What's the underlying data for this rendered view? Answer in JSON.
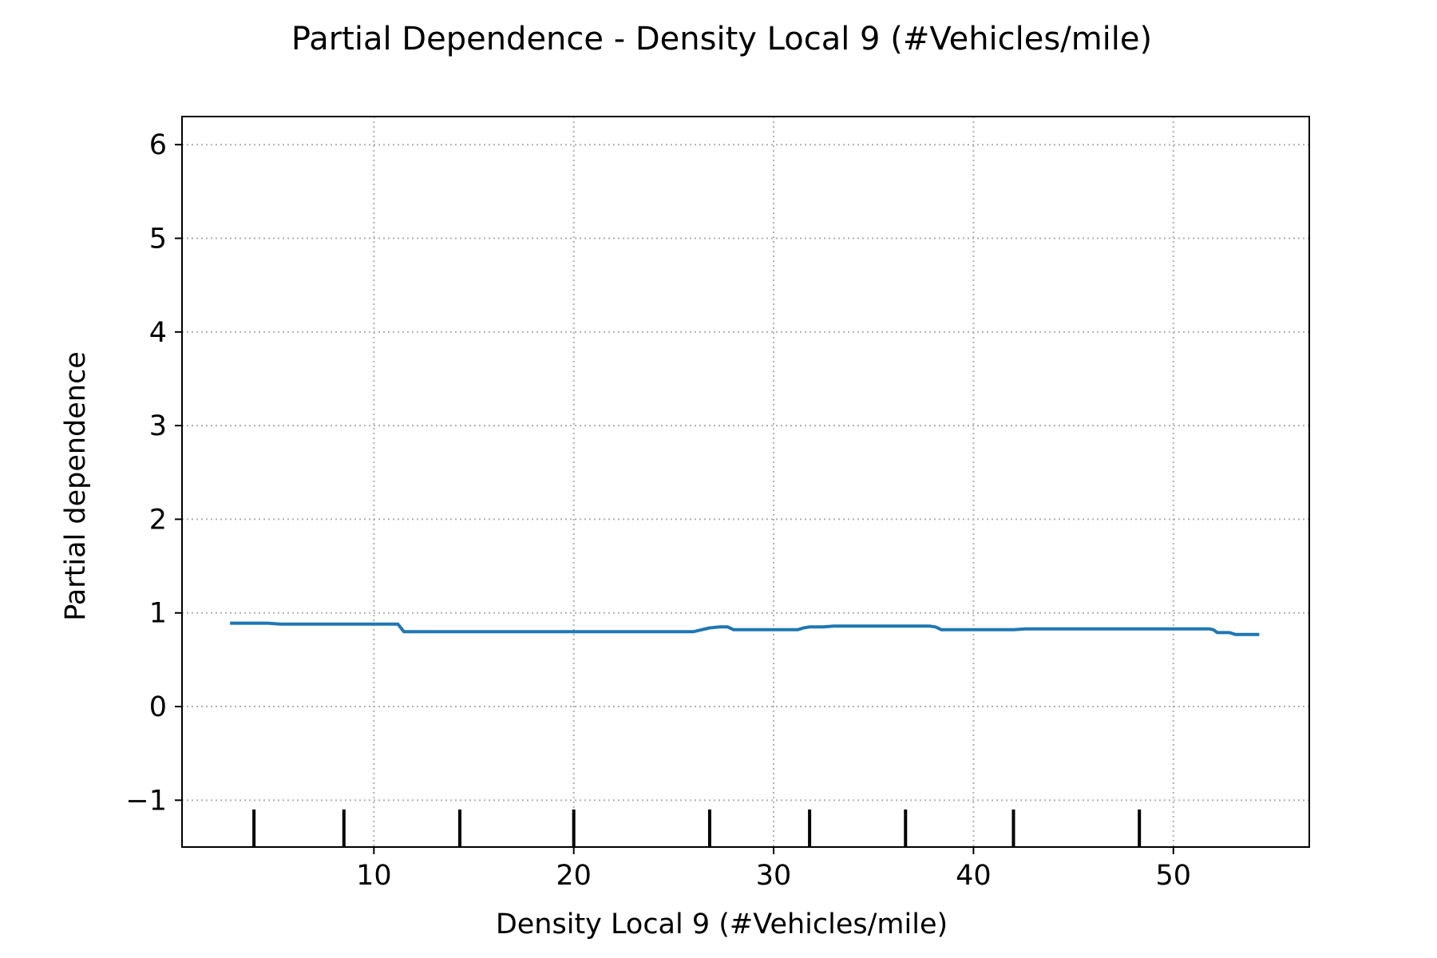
{
  "chart_data": {
    "type": "line",
    "title": "Partial Dependence - Density Local 9 (#Vehicles/mile)",
    "xlabel": "Density Local 9 (#Vehicles/mile)",
    "ylabel": "Partial dependence",
    "xlim": [
      0.4,
      56.8
    ],
    "ylim": [
      -1.5,
      6.3
    ],
    "xticks": [
      10,
      20,
      30,
      40,
      50
    ],
    "xtick_labels": [
      "10",
      "20",
      "30",
      "40",
      "50"
    ],
    "yticks": [
      -1,
      0,
      1,
      2,
      3,
      4,
      5,
      6
    ],
    "ytick_labels": [
      "−1",
      "0",
      "1",
      "2",
      "3",
      "4",
      "5",
      "6"
    ],
    "grid": true,
    "grid_style": "dotted",
    "line_color": "#1f77b4",
    "series": [
      {
        "x": [
          2.8,
          4.0,
          4.7,
          5.3,
          8.5,
          11.2,
          11.5,
          14.3,
          15.0,
          20.0,
          24.5,
          26.0,
          26.4,
          26.8,
          27.3,
          27.7,
          28.0,
          28.7,
          30.5,
          31.2,
          31.5,
          31.8,
          32.5,
          33.0,
          36.5,
          37.5,
          37.8,
          38.1,
          38.4,
          40.0,
          42.0,
          42.6,
          43.0,
          50.0,
          51.8,
          52.0,
          52.2,
          52.8,
          53.1,
          54.3
        ],
        "y": [
          0.89,
          0.89,
          0.89,
          0.88,
          0.88,
          0.88,
          0.8,
          0.8,
          0.8,
          0.8,
          0.8,
          0.8,
          0.82,
          0.84,
          0.85,
          0.85,
          0.82,
          0.82,
          0.82,
          0.82,
          0.84,
          0.85,
          0.85,
          0.86,
          0.86,
          0.86,
          0.86,
          0.85,
          0.82,
          0.82,
          0.82,
          0.83,
          0.83,
          0.83,
          0.83,
          0.82,
          0.79,
          0.79,
          0.77,
          0.77
        ]
      }
    ],
    "rug_x": [
      4.0,
      8.5,
      14.3,
      20.0,
      26.8,
      31.8,
      36.6,
      42.0,
      48.3
    ]
  }
}
